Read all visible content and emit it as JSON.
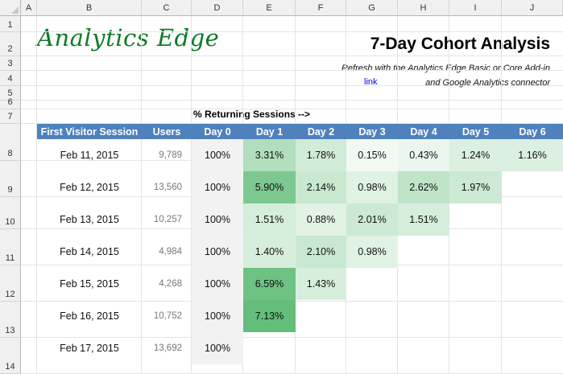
{
  "sheet": {
    "columns": [
      "A",
      "B",
      "C",
      "D",
      "E",
      "F",
      "G",
      "H",
      "I",
      "J"
    ],
    "rows": [
      "1",
      "2",
      "3",
      "4",
      "5",
      "6",
      "7",
      "8",
      "9",
      "10",
      "11",
      "12",
      "13",
      "14"
    ]
  },
  "header": {
    "logo": "Analytics Edge",
    "title": "7-Day Cohort Analysis",
    "subtitle1": "Refresh with the Analytics Edge Basic or Core Add-in",
    "link": "link",
    "subtitle2": "and Google Analytics connector",
    "pct_label": "% Returning Sessions -->"
  },
  "table": {
    "headers": [
      "First Visitor Session",
      "Users",
      "Day 0",
      "Day 1",
      "Day 2",
      "Day 3",
      "Day 4",
      "Day 5",
      "Day 6"
    ],
    "rows": [
      {
        "date": "Feb 11, 2015",
        "users": "9,789",
        "days": [
          "100%",
          "3.31%",
          "1.78%",
          "0.15%",
          "0.43%",
          "1.24%",
          "1.16%"
        ]
      },
      {
        "date": "Feb 12, 2015",
        "users": "13,560",
        "days": [
          "100%",
          "5.90%",
          "2.14%",
          "0.98%",
          "2.62%",
          "1.97%"
        ]
      },
      {
        "date": "Feb 13, 2015",
        "users": "10,257",
        "days": [
          "100%",
          "1.51%",
          "0.88%",
          "2.01%",
          "1.51%"
        ]
      },
      {
        "date": "Feb 14, 2015",
        "users": "4,984",
        "days": [
          "100%",
          "1.40%",
          "2.10%",
          "0.98%"
        ]
      },
      {
        "date": "Feb 15, 2015",
        "users": "4,268",
        "days": [
          "100%",
          "6.59%",
          "1.43%"
        ]
      },
      {
        "date": "Feb 16, 2015",
        "users": "10,752",
        "days": [
          "100%",
          "7.13%"
        ]
      },
      {
        "date": "Feb 17, 2015",
        "users": "13,692",
        "days": [
          "100%"
        ]
      }
    ]
  },
  "colors": {
    "header_bg": "#4f81bd",
    "day0_bg": "#f2f2f2",
    "heat_low": "#f4faf5",
    "heat_high": "#63be7b",
    "logo": "#0f7a28"
  }
}
